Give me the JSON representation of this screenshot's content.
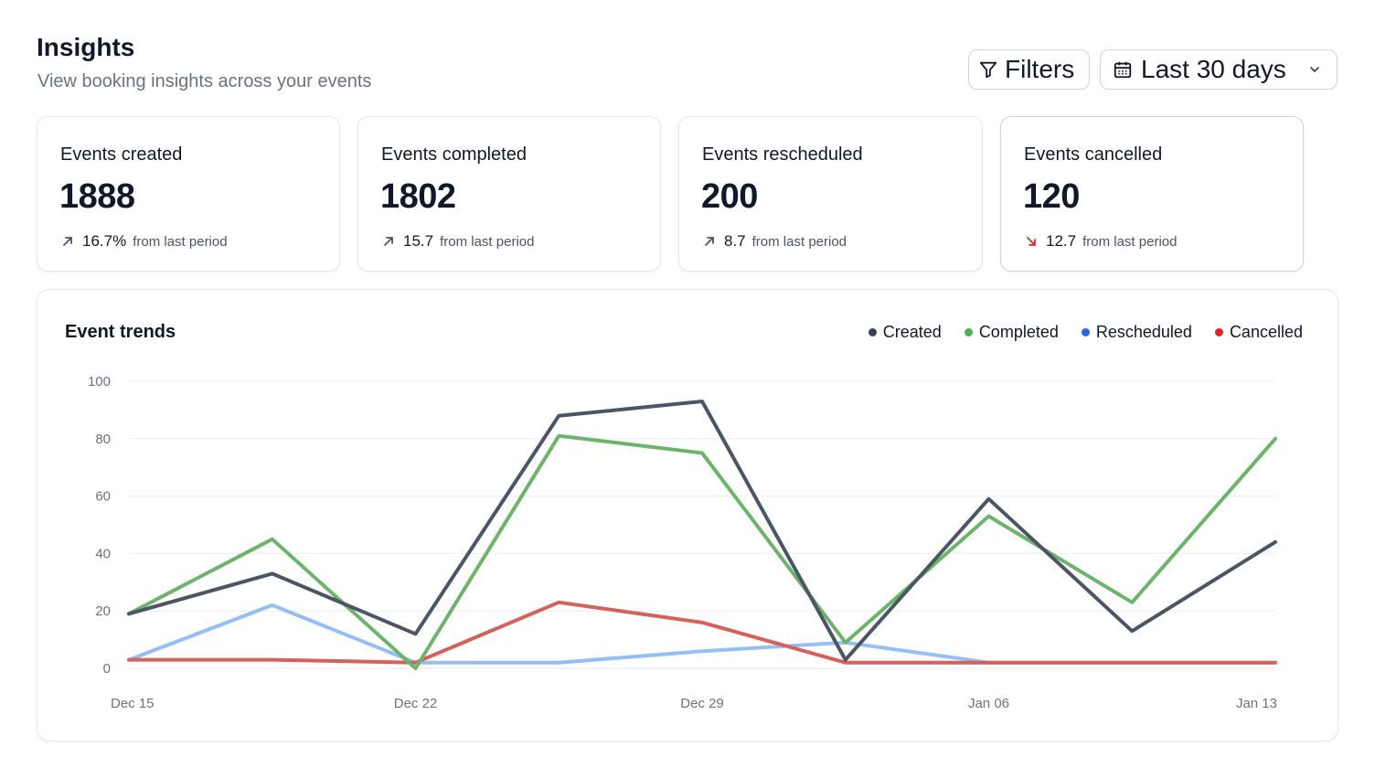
{
  "header": {
    "title": "Insights",
    "subtitle": "View booking insights across your events"
  },
  "toolbar": {
    "filters_label": "Filters",
    "date_range_label": "Last 30 days"
  },
  "icons": {
    "filters": "filter-icon",
    "date_range": "calendar-icon",
    "dropdown": "chevron-down-icon",
    "trend_up": "arrow-up-right-icon",
    "trend_down": "arrow-down-right-icon"
  },
  "cards": [
    {
      "title": "Events created",
      "value": "1888",
      "delta": "16.7%",
      "delta_suffix": "from last period",
      "trend": "up"
    },
    {
      "title": "Events completed",
      "value": "1802",
      "delta": "15.7",
      "delta_suffix": "from last period",
      "trend": "up"
    },
    {
      "title": "Events rescheduled",
      "value": "200",
      "delta": "8.7",
      "delta_suffix": "from last period",
      "trend": "up"
    },
    {
      "title": "Events cancelled",
      "value": "120",
      "delta": "12.7",
      "delta_suffix": "from last period",
      "trend": "down"
    }
  ],
  "colors": {
    "trend_up": "#4b5563",
    "trend_down": "#dc2626"
  },
  "chart": {
    "title": "Event trends"
  },
  "chart_data": {
    "type": "line",
    "x": [
      "Dec 15",
      "Dec 18",
      "Dec 22",
      "Dec 25",
      "Dec 29",
      "Jan 01",
      "Jan 06",
      "Jan 10",
      "Jan 13"
    ],
    "x_tick_labels": [
      "Dec 15",
      "Dec 22",
      "Dec 29",
      "Jan 06",
      "Jan 13"
    ],
    "ylim": [
      0,
      100
    ],
    "y_ticks": [
      0,
      20,
      40,
      60,
      80,
      100
    ],
    "grid": true,
    "legend_position": "top-right",
    "series": [
      {
        "name": "Created",
        "legend_color": "#374151",
        "line_color": "#4b5563",
        "values": [
          19,
          33,
          12,
          88,
          93,
          3,
          59,
          13,
          44
        ]
      },
      {
        "name": "Completed",
        "legend_color": "#4caf50",
        "line_color": "#6cb46a",
        "values": [
          19,
          45,
          0,
          81,
          75,
          9,
          53,
          23,
          80
        ]
      },
      {
        "name": "Rescheduled",
        "legend_color": "#2563eb",
        "line_color": "#93bff5",
        "values": [
          3,
          22,
          2,
          2,
          6,
          9,
          2,
          2,
          2
        ]
      },
      {
        "name": "Cancelled",
        "legend_color": "#dc2626",
        "line_color": "#d6605a",
        "values": [
          3,
          3,
          2,
          23,
          16,
          2,
          2,
          2,
          2
        ]
      }
    ]
  }
}
